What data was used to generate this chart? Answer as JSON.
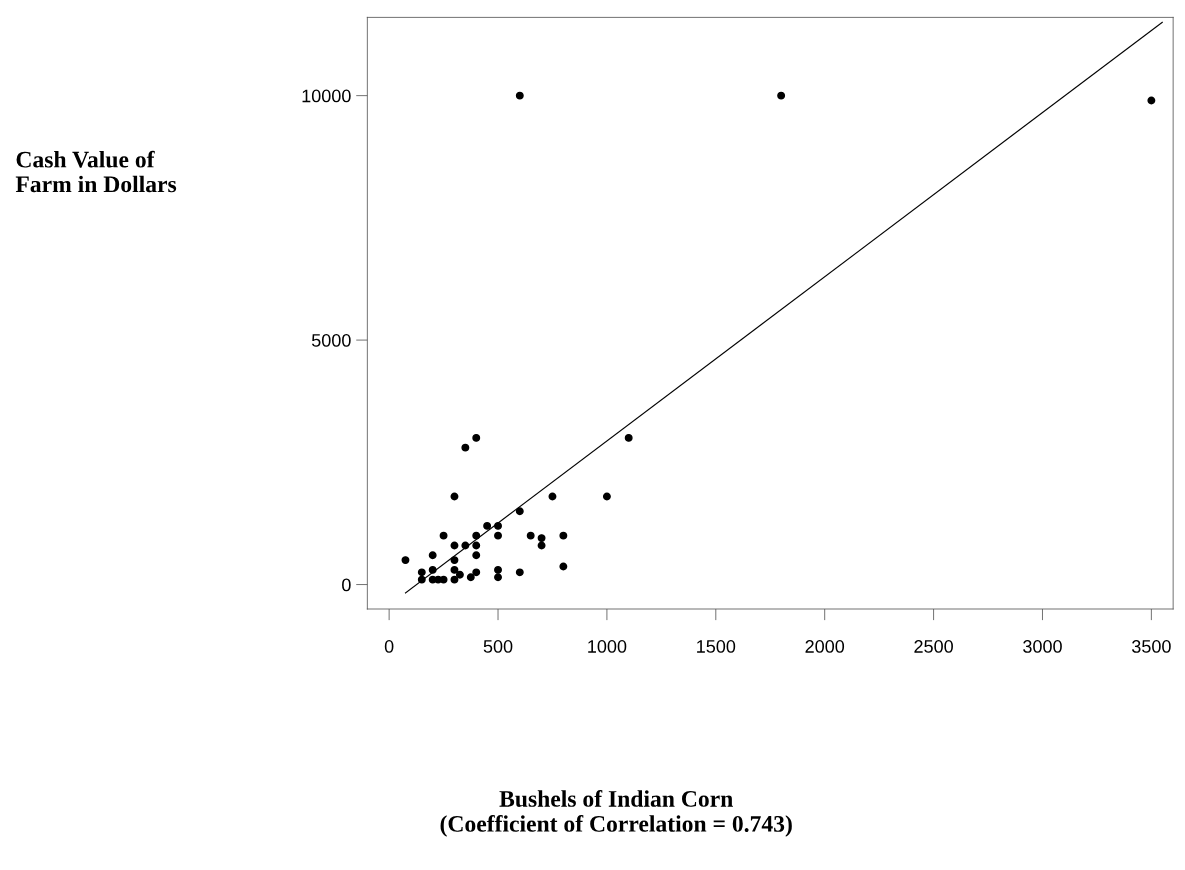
{
  "chart_data": {
    "type": "scatter",
    "annotations": [
      "Cash Value of\nFarm in Dollars",
      "Bushels of Indian Corn\n(Coefficient of Correlation = 0.743)"
    ],
    "xlim": [
      -100,
      3600
    ],
    "ylim": [
      -500,
      11600
    ],
    "xticks": [
      0,
      500,
      1000,
      1500,
      2000,
      2500,
      3000,
      3500
    ],
    "yticks": [
      0,
      5000,
      10000
    ],
    "grid": false,
    "legend": false,
    "marker": "circle",
    "series": [
      {
        "color": "#000000",
        "x": [
          75,
          150,
          150,
          200,
          225,
          250,
          200,
          200,
          250,
          300,
          300,
          300,
          300,
          300,
          325,
          350,
          350,
          400,
          400,
          400,
          400,
          375,
          400,
          450,
          500,
          500,
          500,
          500,
          600,
          600,
          650,
          700,
          700,
          750,
          800,
          800,
          1000,
          1100,
          600,
          1800,
          3500
        ],
        "values": [
          500,
          250,
          100,
          100,
          100,
          100,
          300,
          600,
          1000,
          1800,
          800,
          500,
          300,
          100,
          200,
          2800,
          800,
          3000,
          1000,
          800,
          600,
          150,
          250,
          1200,
          1200,
          1000,
          300,
          150,
          1500,
          250,
          1000,
          950,
          800,
          1800,
          1000,
          370,
          1800,
          3000,
          10000,
          10000,
          9900
        ]
      },
      {
        "type": "line",
        "color": "#000000",
        "line_style": "solid",
        "marker": "none",
        "x": [
          75,
          3550
        ],
        "values": [
          -170,
          11500
        ]
      }
    ]
  }
}
